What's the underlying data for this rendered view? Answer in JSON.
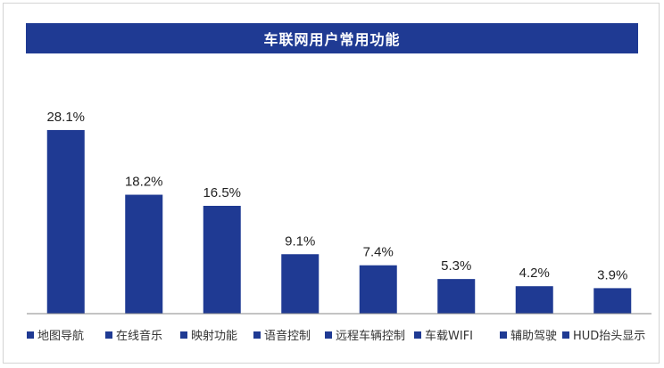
{
  "colors": {
    "bar": "#1f3a93",
    "title_bg": "#1f3a93",
    "axis": "#888888",
    "label": "#222222"
  },
  "chart_data": {
    "type": "bar",
    "title": "车联网用户常用功能",
    "categories": [
      "地图导航",
      "在线音乐",
      "映射功能",
      "语音控制",
      "远程车辆控制",
      "车载WIFI",
      "辅助驾驶",
      "HUD抬头显示"
    ],
    "values": [
      28.1,
      18.2,
      16.5,
      9.1,
      7.4,
      5.3,
      4.2,
      3.9
    ],
    "data_labels": [
      "28.1%",
      "18.2%",
      "16.5%",
      "9.1%",
      "7.4%",
      "5.3%",
      "4.2%",
      "3.9%"
    ],
    "value_unit": "%",
    "ylim": [
      0,
      30
    ],
    "xlabel": "",
    "ylabel": "",
    "grid": false,
    "legend": "bottom"
  }
}
